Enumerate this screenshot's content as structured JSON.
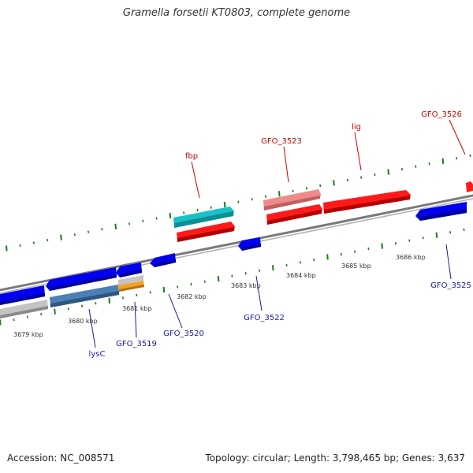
{
  "title": "Gramella forsetii KT0803, complete genome",
  "footer": {
    "accession": "Accession: NC_008571",
    "summary": "Topology: circular; Length: 3,798,465 bp; Genes: 3,637"
  },
  "colors": {
    "forward_label": "#cc0000",
    "reverse_label": "#1a1aa8",
    "backbone": "#7a7a7a",
    "ticks": "#1e7a1e",
    "forward_gene": "#ff0000",
    "reverse_gene": "#0000ee"
  },
  "map": {
    "scale_labels": [
      "3679 kbp",
      "3680 kbp",
      "3681 kbp",
      "3682 kbp",
      "3683 kbp",
      "3684 kbp",
      "3685 kbp",
      "3686 kbp"
    ],
    "forward_labels": [
      "fbp",
      "GFO_3523",
      "lig",
      "GFO_3526"
    ],
    "reverse_labels": [
      "lysC",
      "GFO_3519",
      "GFO_3520",
      "GFO_3522",
      "GFO_3525"
    ]
  }
}
